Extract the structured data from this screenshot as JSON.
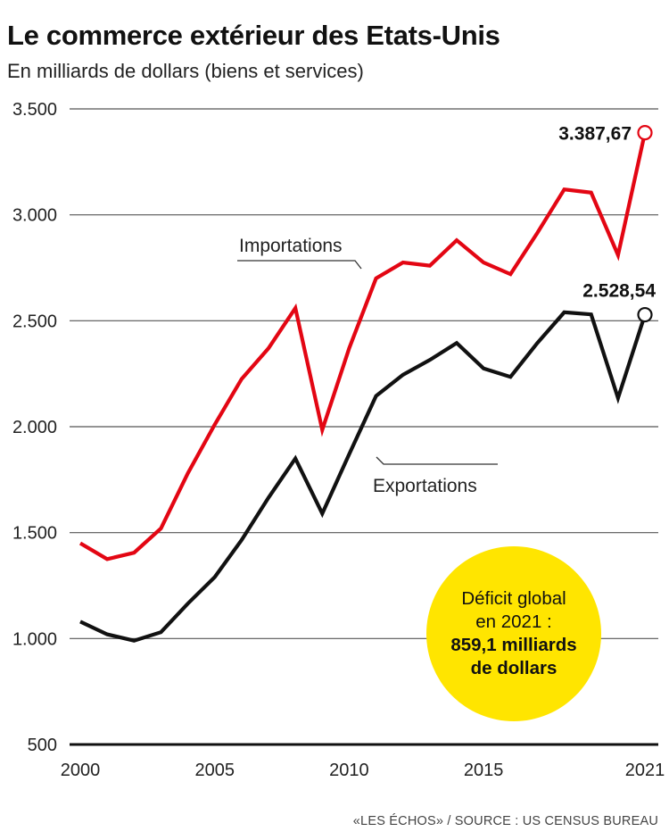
{
  "title": "Le commerce extérieur des Etats-Unis",
  "subtitle": "En milliards de dollars (biens et services)",
  "source": "«LES ÉCHOS» / SOURCE : US CENSUS BUREAU",
  "callout": {
    "line1": "Déficit global",
    "line2": "en 2021 :",
    "line3": "859,1 milliards",
    "line4": "de dollars",
    "color": "#ffe500"
  },
  "chart_data": {
    "type": "line",
    "title": "Le commerce extérieur des Etats-Unis",
    "subtitle": "En milliards de dollars (biens et services)",
    "ylim": [
      500,
      3500
    ],
    "xlim": [
      2000,
      2021
    ],
    "yticks": [
      500,
      1000,
      1500,
      2000,
      2500,
      3000,
      3500
    ],
    "ytick_labels": [
      "500",
      "1.000",
      "1.500",
      "2.000",
      "2.500",
      "3.000",
      "3.500"
    ],
    "xticks": [
      2000,
      2005,
      2010,
      2015,
      2021
    ],
    "xtick_labels": [
      "2000",
      "2005",
      "2010",
      "2015",
      "2021"
    ],
    "grid": "horizontal",
    "x": [
      2000,
      2001,
      2002,
      2003,
      2004,
      2005,
      2006,
      2007,
      2008,
      2009,
      2010,
      2011,
      2012,
      2013,
      2014,
      2015,
      2016,
      2017,
      2018,
      2019,
      2020,
      2021
    ],
    "series": [
      {
        "name": "Importations",
        "color": "#e30613",
        "values": [
          1450,
          1375,
          1405,
          1520,
          1780,
          2010,
          2225,
          2370,
          2560,
          1985,
          2370,
          2700,
          2775,
          2760,
          2880,
          2775,
          2720,
          2915,
          3120,
          3105,
          2810,
          3387.67
        ],
        "end_label": "3.387,67"
      },
      {
        "name": "Exportations",
        "color": "#111111",
        "values": [
          1080,
          1020,
          990,
          1030,
          1165,
          1290,
          1465,
          1665,
          1850,
          1590,
          1870,
          2145,
          2245,
          2315,
          2395,
          2275,
          2235,
          2395,
          2540,
          2530,
          2135,
          2528.54
        ],
        "end_label": "2.528,54"
      }
    ]
  }
}
